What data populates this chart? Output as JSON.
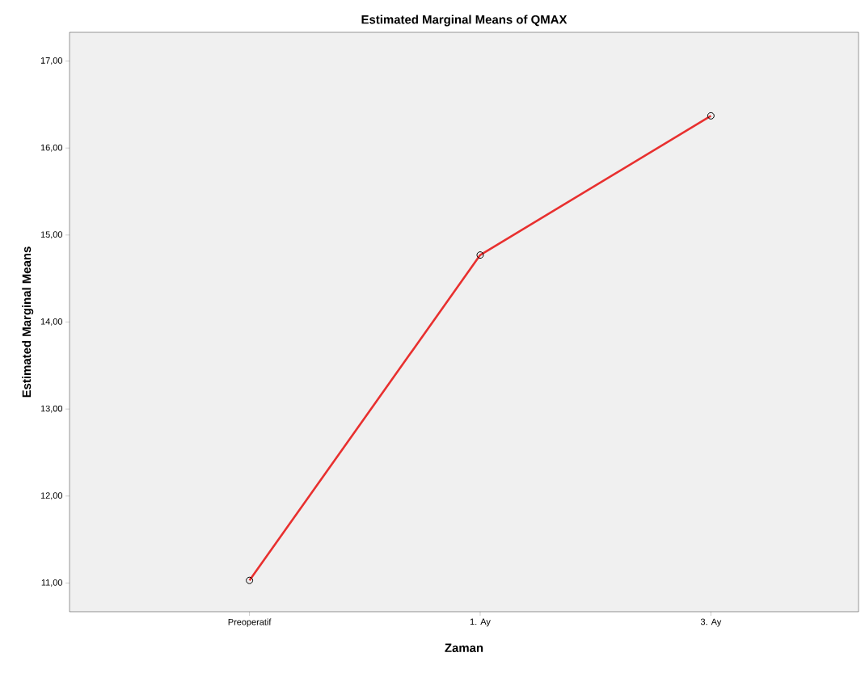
{
  "chart_data": {
    "type": "line",
    "title": "Estimated Marginal Means of QMAX",
    "xlabel": "Zaman",
    "ylabel": "Estimated Marginal Means",
    "categories": [
      "Preoperatif",
      "1. Ay",
      "3. Ay"
    ],
    "series": [
      {
        "color": "#e8302f",
        "values": [
          11.03,
          14.77,
          16.37
        ]
      }
    ],
    "ylim": [
      10.67,
      17.33
    ],
    "yticks": [
      {
        "value": 11,
        "label": "11,00"
      },
      {
        "value": 12,
        "label": "12,00"
      },
      {
        "value": 13,
        "label": "13,00"
      },
      {
        "value": 14,
        "label": "14,00"
      },
      {
        "value": 15,
        "label": "15,00"
      },
      {
        "value": 16,
        "label": "16,00"
      },
      {
        "value": 17,
        "label": "17,00"
      }
    ],
    "marker": "circle",
    "grid": false
  }
}
